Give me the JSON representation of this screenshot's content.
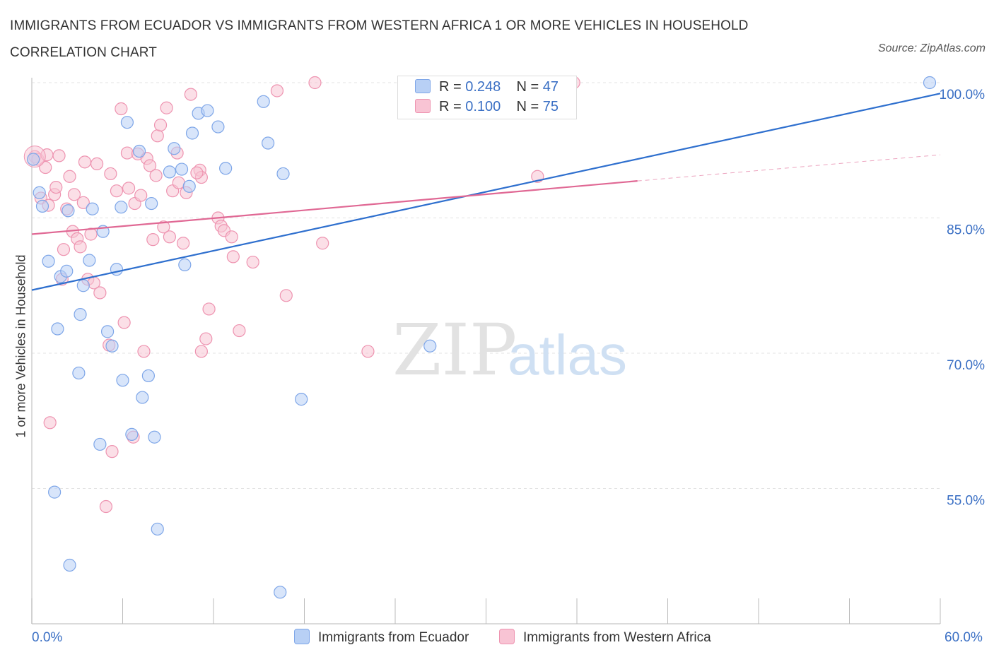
{
  "title": "IMMIGRANTS FROM ECUADOR VS IMMIGRANTS FROM WESTERN AFRICA 1 OR MORE VEHICLES IN HOUSEHOLD CORRELATION CHART",
  "source": "Source: ZipAtlas.com",
  "watermark": {
    "zip": "ZIP",
    "atlas": "atlas"
  },
  "legend": {
    "r_label": "R = ",
    "n_label": "N = ",
    "series": [
      {
        "r": "0.248",
        "n": "47"
      },
      {
        "r": "0.100",
        "n": "75"
      }
    ]
  },
  "colors": {
    "blue_fill": "#b8d0f5",
    "blue_stroke": "#7ea6e8",
    "blue_line": "#2e6fce",
    "pink_fill": "#f8c4d4",
    "pink_stroke": "#ee93b0",
    "pink_line": "#e06894",
    "axis_tick_text": "#3a6fc4"
  },
  "chart_data": {
    "type": "scatter",
    "title": "IMMIGRANTS FROM ECUADOR VS IMMIGRANTS FROM WESTERN AFRICA 1 OR MORE VEHICLES IN HOUSEHOLD CORRELATION CHART",
    "xlabel": "",
    "ylabel": "1 or more Vehicles in Household",
    "xlim": [
      0,
      60
    ],
    "ylim": [
      40,
      100
    ],
    "x_tick_labels": [
      "0.0%",
      "60.0%"
    ],
    "y_ticks": [
      55,
      70,
      85,
      100
    ],
    "y_tick_labels": [
      "55.0%",
      "70.0%",
      "85.0%",
      "100.0%"
    ],
    "grid": true,
    "legend_position": "top-center",
    "series": [
      {
        "name": "Immigrants from Ecuador",
        "color": "#7ea6e8",
        "trend": {
          "x": [
            0,
            60
          ],
          "y": [
            77.0,
            98.8
          ]
        },
        "points": [
          [
            0.1,
            91.5
          ],
          [
            0.5,
            87.8
          ],
          [
            0.7,
            86.3
          ],
          [
            1.1,
            80.2
          ],
          [
            1.7,
            72.7
          ],
          [
            1.9,
            78.5
          ],
          [
            2.3,
            79.1
          ],
          [
            2.4,
            85.8
          ],
          [
            3.1,
            67.8
          ],
          [
            3.2,
            74.3
          ],
          [
            3.4,
            77.5
          ],
          [
            3.8,
            80.3
          ],
          [
            4.0,
            86.0
          ],
          [
            4.5,
            59.9
          ],
          [
            4.7,
            83.5
          ],
          [
            5.0,
            72.4
          ],
          [
            5.3,
            70.8
          ],
          [
            5.6,
            79.3
          ],
          [
            5.9,
            86.2
          ],
          [
            6.0,
            67.0
          ],
          [
            6.3,
            95.6
          ],
          [
            6.6,
            61.0
          ],
          [
            7.1,
            92.4
          ],
          [
            7.3,
            65.1
          ],
          [
            7.7,
            67.5
          ],
          [
            7.9,
            86.6
          ],
          [
            8.1,
            60.7
          ],
          [
            8.3,
            50.5
          ],
          [
            9.1,
            90.1
          ],
          [
            9.4,
            92.7
          ],
          [
            9.9,
            90.4
          ],
          [
            10.1,
            79.8
          ],
          [
            10.4,
            88.5
          ],
          [
            10.6,
            94.4
          ],
          [
            11.0,
            96.6
          ],
          [
            11.6,
            96.9
          ],
          [
            12.3,
            95.1
          ],
          [
            12.8,
            90.5
          ],
          [
            15.3,
            97.9
          ],
          [
            15.6,
            93.3
          ],
          [
            16.4,
            43.5
          ],
          [
            16.6,
            89.9
          ],
          [
            17.8,
            64.9
          ],
          [
            26.3,
            70.8
          ],
          [
            59.3,
            100.0
          ],
          [
            2.5,
            46.5
          ],
          [
            1.5,
            54.6
          ]
        ]
      },
      {
        "name": "Immigrants from Western Africa",
        "color": "#ee93b0",
        "trend": {
          "x": [
            0,
            40
          ],
          "y": [
            83.2,
            89.1
          ]
        },
        "trend_dashed": {
          "x": [
            40,
            60
          ],
          "y": [
            89.1,
            92.0
          ]
        },
        "points": [
          [
            0.2,
            91.8
          ],
          [
            0.4,
            91.5
          ],
          [
            0.6,
            87.2
          ],
          [
            0.9,
            90.6
          ],
          [
            1.1,
            86.4
          ],
          [
            1.2,
            62.3
          ],
          [
            1.5,
            87.6
          ],
          [
            1.6,
            88.4
          ],
          [
            1.8,
            91.9
          ],
          [
            2.0,
            78.2
          ],
          [
            2.1,
            81.5
          ],
          [
            2.3,
            86.0
          ],
          [
            2.5,
            89.6
          ],
          [
            2.7,
            83.5
          ],
          [
            2.8,
            87.6
          ],
          [
            3.0,
            82.7
          ],
          [
            3.2,
            81.8
          ],
          [
            3.4,
            86.7
          ],
          [
            3.5,
            91.2
          ],
          [
            3.7,
            78.2
          ],
          [
            3.9,
            83.2
          ],
          [
            4.1,
            77.8
          ],
          [
            4.3,
            91.0
          ],
          [
            4.5,
            76.7
          ],
          [
            4.9,
            53.0
          ],
          [
            5.1,
            70.9
          ],
          [
            5.2,
            89.9
          ],
          [
            5.3,
            59.1
          ],
          [
            5.6,
            88.0
          ],
          [
            5.9,
            97.1
          ],
          [
            6.1,
            73.4
          ],
          [
            6.3,
            92.2
          ],
          [
            6.4,
            88.3
          ],
          [
            6.8,
            86.6
          ],
          [
            7.0,
            92.1
          ],
          [
            7.2,
            87.5
          ],
          [
            7.4,
            70.2
          ],
          [
            7.6,
            91.6
          ],
          [
            7.8,
            90.8
          ],
          [
            8.0,
            82.6
          ],
          [
            8.2,
            89.7
          ],
          [
            8.3,
            94.1
          ],
          [
            8.5,
            95.3
          ],
          [
            8.7,
            84.0
          ],
          [
            8.9,
            97.2
          ],
          [
            9.1,
            82.9
          ],
          [
            9.3,
            88.0
          ],
          [
            9.6,
            92.2
          ],
          [
            9.7,
            88.9
          ],
          [
            10.0,
            82.2
          ],
          [
            10.2,
            87.8
          ],
          [
            10.5,
            98.7
          ],
          [
            11.1,
            90.3
          ],
          [
            11.2,
            89.5
          ],
          [
            11.5,
            71.6
          ],
          [
            11.7,
            74.9
          ],
          [
            12.3,
            85.0
          ],
          [
            12.5,
            84.1
          ],
          [
            12.7,
            83.6
          ],
          [
            13.2,
            82.9
          ],
          [
            13.3,
            80.7
          ],
          [
            13.7,
            72.5
          ],
          [
            14.6,
            80.1
          ],
          [
            16.2,
            99.1
          ],
          [
            16.8,
            76.4
          ],
          [
            18.7,
            100.0
          ],
          [
            19.2,
            82.2
          ],
          [
            22.2,
            70.2
          ],
          [
            26.9,
            97.5
          ],
          [
            33.4,
            89.6
          ],
          [
            35.8,
            100.0
          ],
          [
            1.0,
            92.0
          ],
          [
            6.7,
            60.7
          ],
          [
            11.2,
            70.2
          ],
          [
            10.9,
            90.0
          ]
        ]
      }
    ]
  },
  "axis": {
    "x_min_label": "0.0%",
    "x_max_label": "60.0%"
  }
}
